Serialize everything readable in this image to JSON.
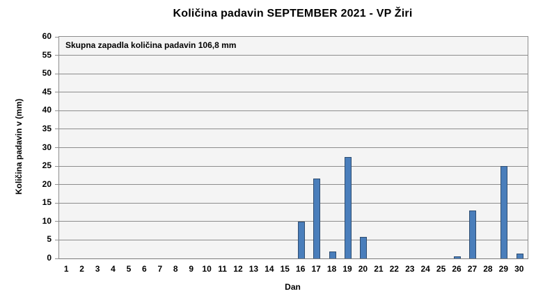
{
  "chart_data": {
    "type": "bar",
    "title": "Količina padavin SEPTEMBER 2021 - VP Žiri",
    "annotation": "Skupna zapadla količina padavin 106,8 mm",
    "xlabel": "Dan",
    "ylabel": "Količina padavin v (mm)",
    "categories": [
      "1",
      "2",
      "3",
      "4",
      "5",
      "6",
      "7",
      "8",
      "9",
      "10",
      "11",
      "12",
      "13",
      "14",
      "15",
      "16",
      "17",
      "18",
      "19",
      "20",
      "21",
      "22",
      "23",
      "24",
      "25",
      "26",
      "27",
      "28",
      "29",
      "30"
    ],
    "values": [
      0,
      0,
      0,
      0,
      0,
      0,
      0,
      0,
      0,
      0,
      0,
      0,
      0,
      0,
      0,
      10.0,
      21.7,
      1.8,
      27.5,
      5.9,
      0,
      0,
      0,
      0,
      0,
      0.5,
      13.0,
      0,
      25.0,
      1.4
    ],
    "total_mm": "106,8",
    "ylim": [
      0,
      60
    ],
    "ytick_step": 5,
    "grid": true,
    "legend_position": "none",
    "colors": {
      "bar_fill": "#4A7EBB",
      "bar_border": "#2E4D71",
      "gridline": "#8C8C8C",
      "plot_bg": "#F4F4F4",
      "text": "#000000",
      "chart_bg": "#FFFFFF"
    }
  }
}
